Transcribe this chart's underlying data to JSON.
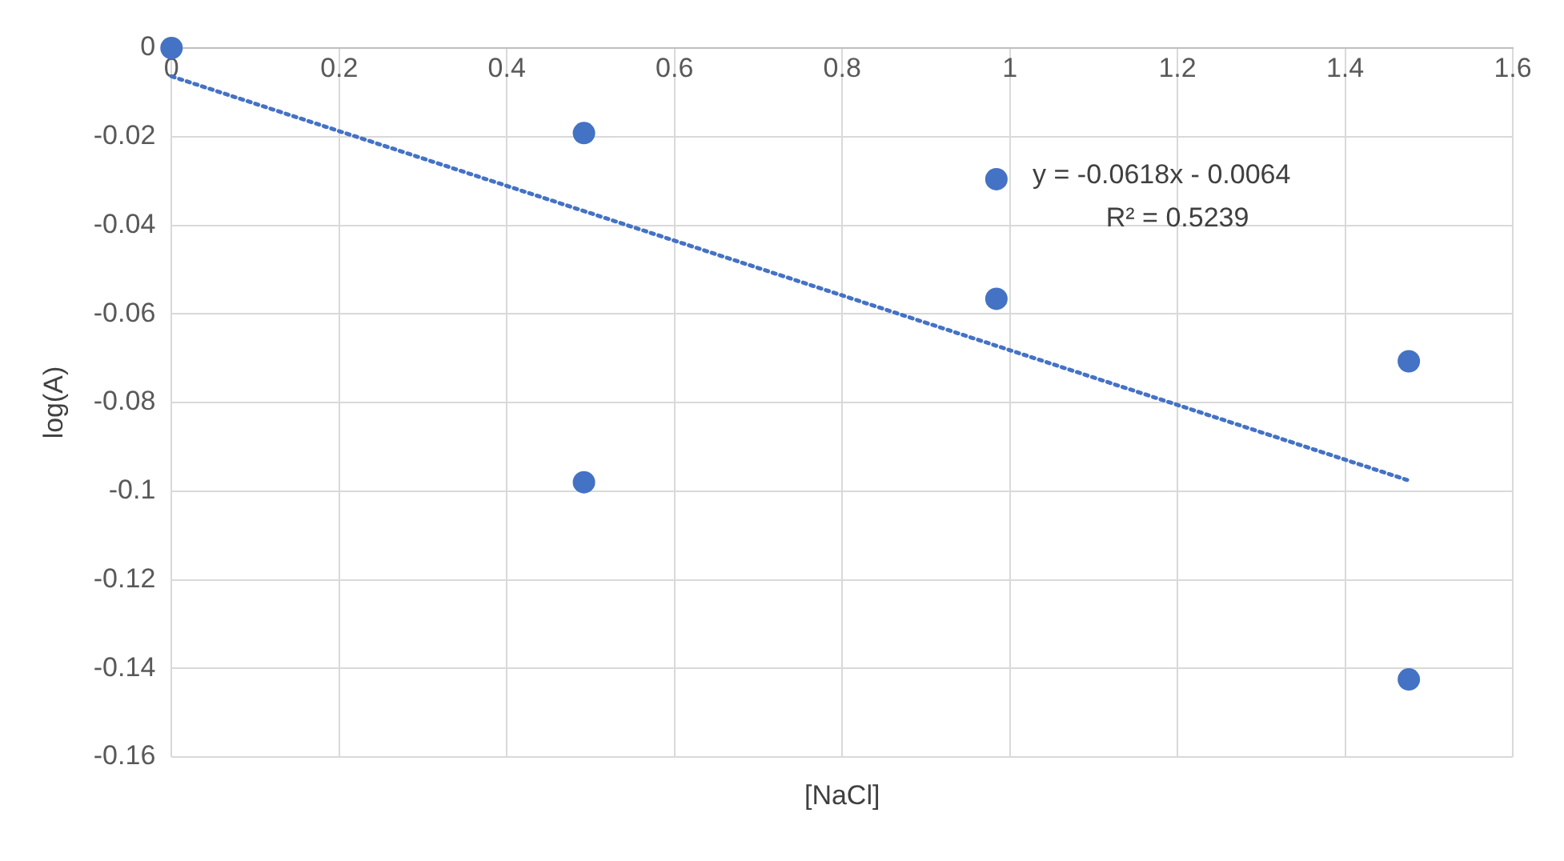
{
  "chart_data": {
    "type": "scatter",
    "xlabel": "[NaCl]",
    "ylabel": "log(A)",
    "xlim": [
      0,
      1.6
    ],
    "xticks": [
      0,
      0.2,
      0.4,
      0.6,
      0.8,
      1,
      1.2,
      1.4,
      1.6
    ],
    "ylim": [
      -0.16,
      0
    ],
    "yticks": [
      -0.16,
      -0.14,
      -0.12,
      -0.1,
      -0.08,
      -0.06,
      -0.04,
      -0.02,
      0
    ],
    "grid": true,
    "legend": false,
    "marker": "circle",
    "series": [
      {
        "color": "#4472c4",
        "x": [
          0,
          0.492,
          0.492,
          0.984,
          0.984,
          1.476,
          1.476
        ],
        "values": [
          0,
          -0.0192,
          -0.098,
          -0.0296,
          -0.0566,
          -0.0707,
          -0.1425
        ]
      },
      {
        "type": "line",
        "color": "#4472c4",
        "marker": "none",
        "line_style": "dotted",
        "x": [
          0,
          1.476
        ],
        "values": [
          -0.0064,
          -0.0976
        ]
      }
    ],
    "annotations": [
      "y = -0.0618x - 0.0064",
      "R² = 0.5239"
    ]
  }
}
